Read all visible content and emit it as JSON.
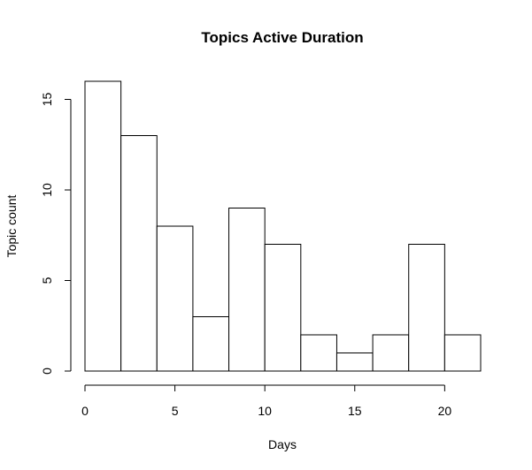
{
  "chart_data": {
    "type": "bar",
    "title": "Topics Active Duration",
    "xlabel": "Days",
    "ylabel": "Topic count",
    "bins": [
      {
        "x0": 0,
        "x1": 2,
        "count": 16
      },
      {
        "x0": 2,
        "x1": 4,
        "count": 13
      },
      {
        "x0": 4,
        "x1": 6,
        "count": 8
      },
      {
        "x0": 6,
        "x1": 8,
        "count": 3
      },
      {
        "x0": 8,
        "x1": 10,
        "count": 9
      },
      {
        "x0": 10,
        "x1": 12,
        "count": 7
      },
      {
        "x0": 12,
        "x1": 14,
        "count": 2
      },
      {
        "x0": 14,
        "x1": 16,
        "count": 1
      },
      {
        "x0": 16,
        "x1": 18,
        "count": 2
      },
      {
        "x0": 18,
        "x1": 20,
        "count": 7
      },
      {
        "x0": 20,
        "x1": 22,
        "count": 2
      }
    ],
    "xlim": [
      0,
      22
    ],
    "ylim": [
      0,
      16
    ],
    "xticks": [
      0,
      5,
      10,
      15,
      20
    ],
    "yticks": [
      0,
      5,
      10,
      15
    ],
    "grid": false,
    "legend": "none",
    "colors": {
      "bar_fill": "#ffffff",
      "bar_stroke": "#000000"
    }
  }
}
